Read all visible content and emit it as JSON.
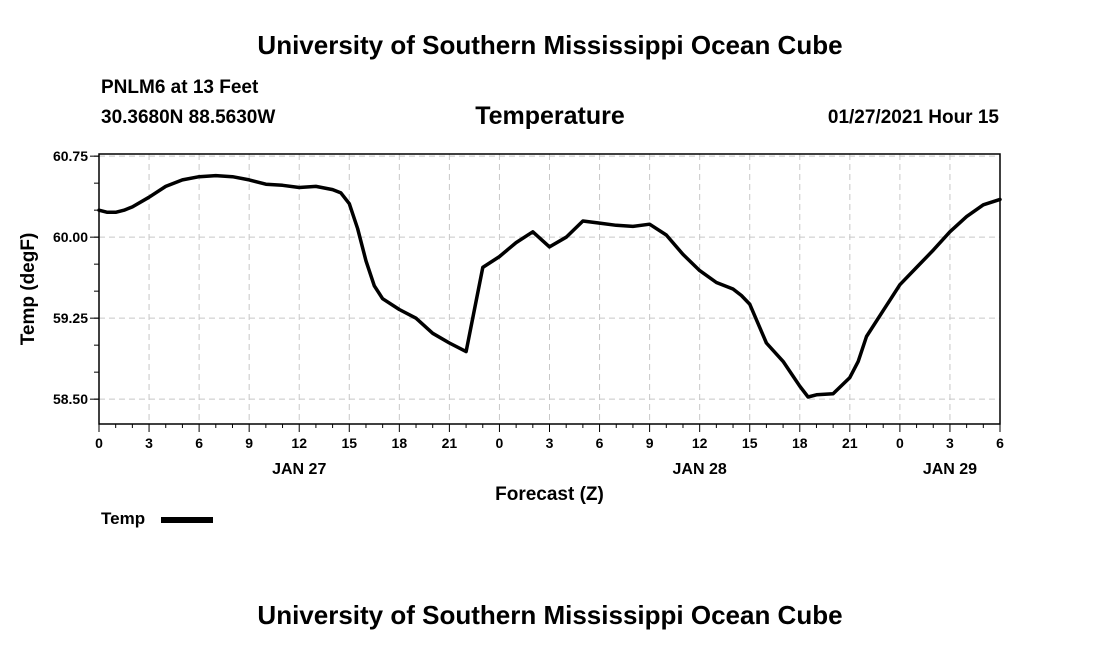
{
  "header": {
    "title": "University of Southern Mississippi Ocean Cube",
    "station": "PNLM6 at 13 Feet",
    "coords": "30.3680N 88.5630W",
    "variable": "Temperature",
    "datetime": "01/27/2021 Hour 15"
  },
  "footer": {
    "title": "University of Southern Mississippi Ocean Cube"
  },
  "legend": {
    "label": "Temp"
  },
  "chart_data": {
    "type": "line",
    "title": "Temperature",
    "xlabel": "Forecast (Z)",
    "ylabel": "Temp (degF)",
    "xlim": [
      0,
      54
    ],
    "ylim": [
      58.27,
      60.77
    ],
    "yticks": [
      58.5,
      59.25,
      60.0,
      60.75
    ],
    "ytick_labels": [
      "58.50",
      "59.25",
      "60.00",
      "60.75"
    ],
    "xticks": [
      0,
      3,
      6,
      9,
      12,
      15,
      18,
      21,
      24,
      27,
      30,
      33,
      36,
      39,
      42,
      45,
      48,
      51,
      54
    ],
    "xtick_labels": [
      "0",
      "3",
      "6",
      "9",
      "12",
      "15",
      "18",
      "21",
      "0",
      "3",
      "6",
      "9",
      "12",
      "15",
      "18",
      "21",
      "0",
      "3",
      "6"
    ],
    "day_labels": [
      {
        "x": 12,
        "label": "JAN 27"
      },
      {
        "x": 36,
        "label": "JAN 28"
      },
      {
        "x": 51,
        "label": "JAN 29"
      }
    ],
    "grid": true,
    "series": [
      {
        "name": "Temp",
        "x": [
          0,
          0.5,
          1,
          1.5,
          2,
          3,
          4,
          5,
          6,
          7,
          8,
          9,
          10,
          11,
          12,
          13,
          14,
          14.5,
          15,
          15.5,
          16,
          16.5,
          17,
          18,
          19,
          20,
          21,
          22,
          23,
          24,
          25,
          26,
          27,
          28,
          29,
          30,
          31,
          32,
          33,
          34,
          35,
          36,
          37,
          38,
          38.5,
          39,
          40,
          41,
          42,
          42.5,
          43,
          44,
          45,
          45.5,
          46,
          47,
          48,
          49,
          50,
          51,
          52,
          53,
          54
        ],
        "values": [
          60.25,
          60.23,
          60.23,
          60.25,
          60.28,
          60.37,
          60.47,
          60.53,
          60.56,
          60.57,
          60.56,
          60.53,
          60.49,
          60.48,
          60.46,
          60.47,
          60.44,
          60.41,
          60.31,
          60.08,
          59.78,
          59.55,
          59.43,
          59.33,
          59.25,
          59.11,
          59.02,
          58.94,
          59.72,
          59.82,
          59.95,
          60.05,
          59.91,
          60.0,
          60.15,
          60.13,
          60.11,
          60.1,
          60.12,
          60.02,
          59.84,
          59.69,
          59.58,
          59.52,
          59.46,
          59.38,
          59.02,
          58.85,
          58.62,
          58.52,
          58.54,
          58.55,
          58.7,
          58.85,
          59.08,
          59.32,
          59.56,
          59.72,
          59.88,
          60.05,
          60.19,
          60.3,
          60.35
        ]
      }
    ]
  }
}
